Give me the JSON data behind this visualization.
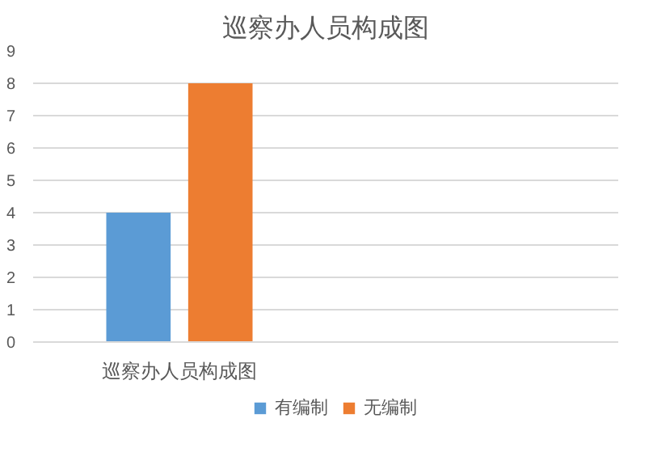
{
  "chart_data": {
    "type": "bar",
    "title": "巡察办人员构成图",
    "categories": [
      "巡察办人员构成图",
      null
    ],
    "series": [
      {
        "name": "有编制",
        "color": "#5b9bd5",
        "values": [
          4,
          null
        ]
      },
      {
        "name": "无编制",
        "color": "#ed7d31",
        "values": [
          8,
          null
        ]
      }
    ],
    "ylim": [
      0,
      9
    ],
    "yticks": [
      0,
      1,
      2,
      3,
      4,
      5,
      6,
      7,
      8,
      9
    ],
    "grid": "y",
    "legend": "bottom"
  }
}
